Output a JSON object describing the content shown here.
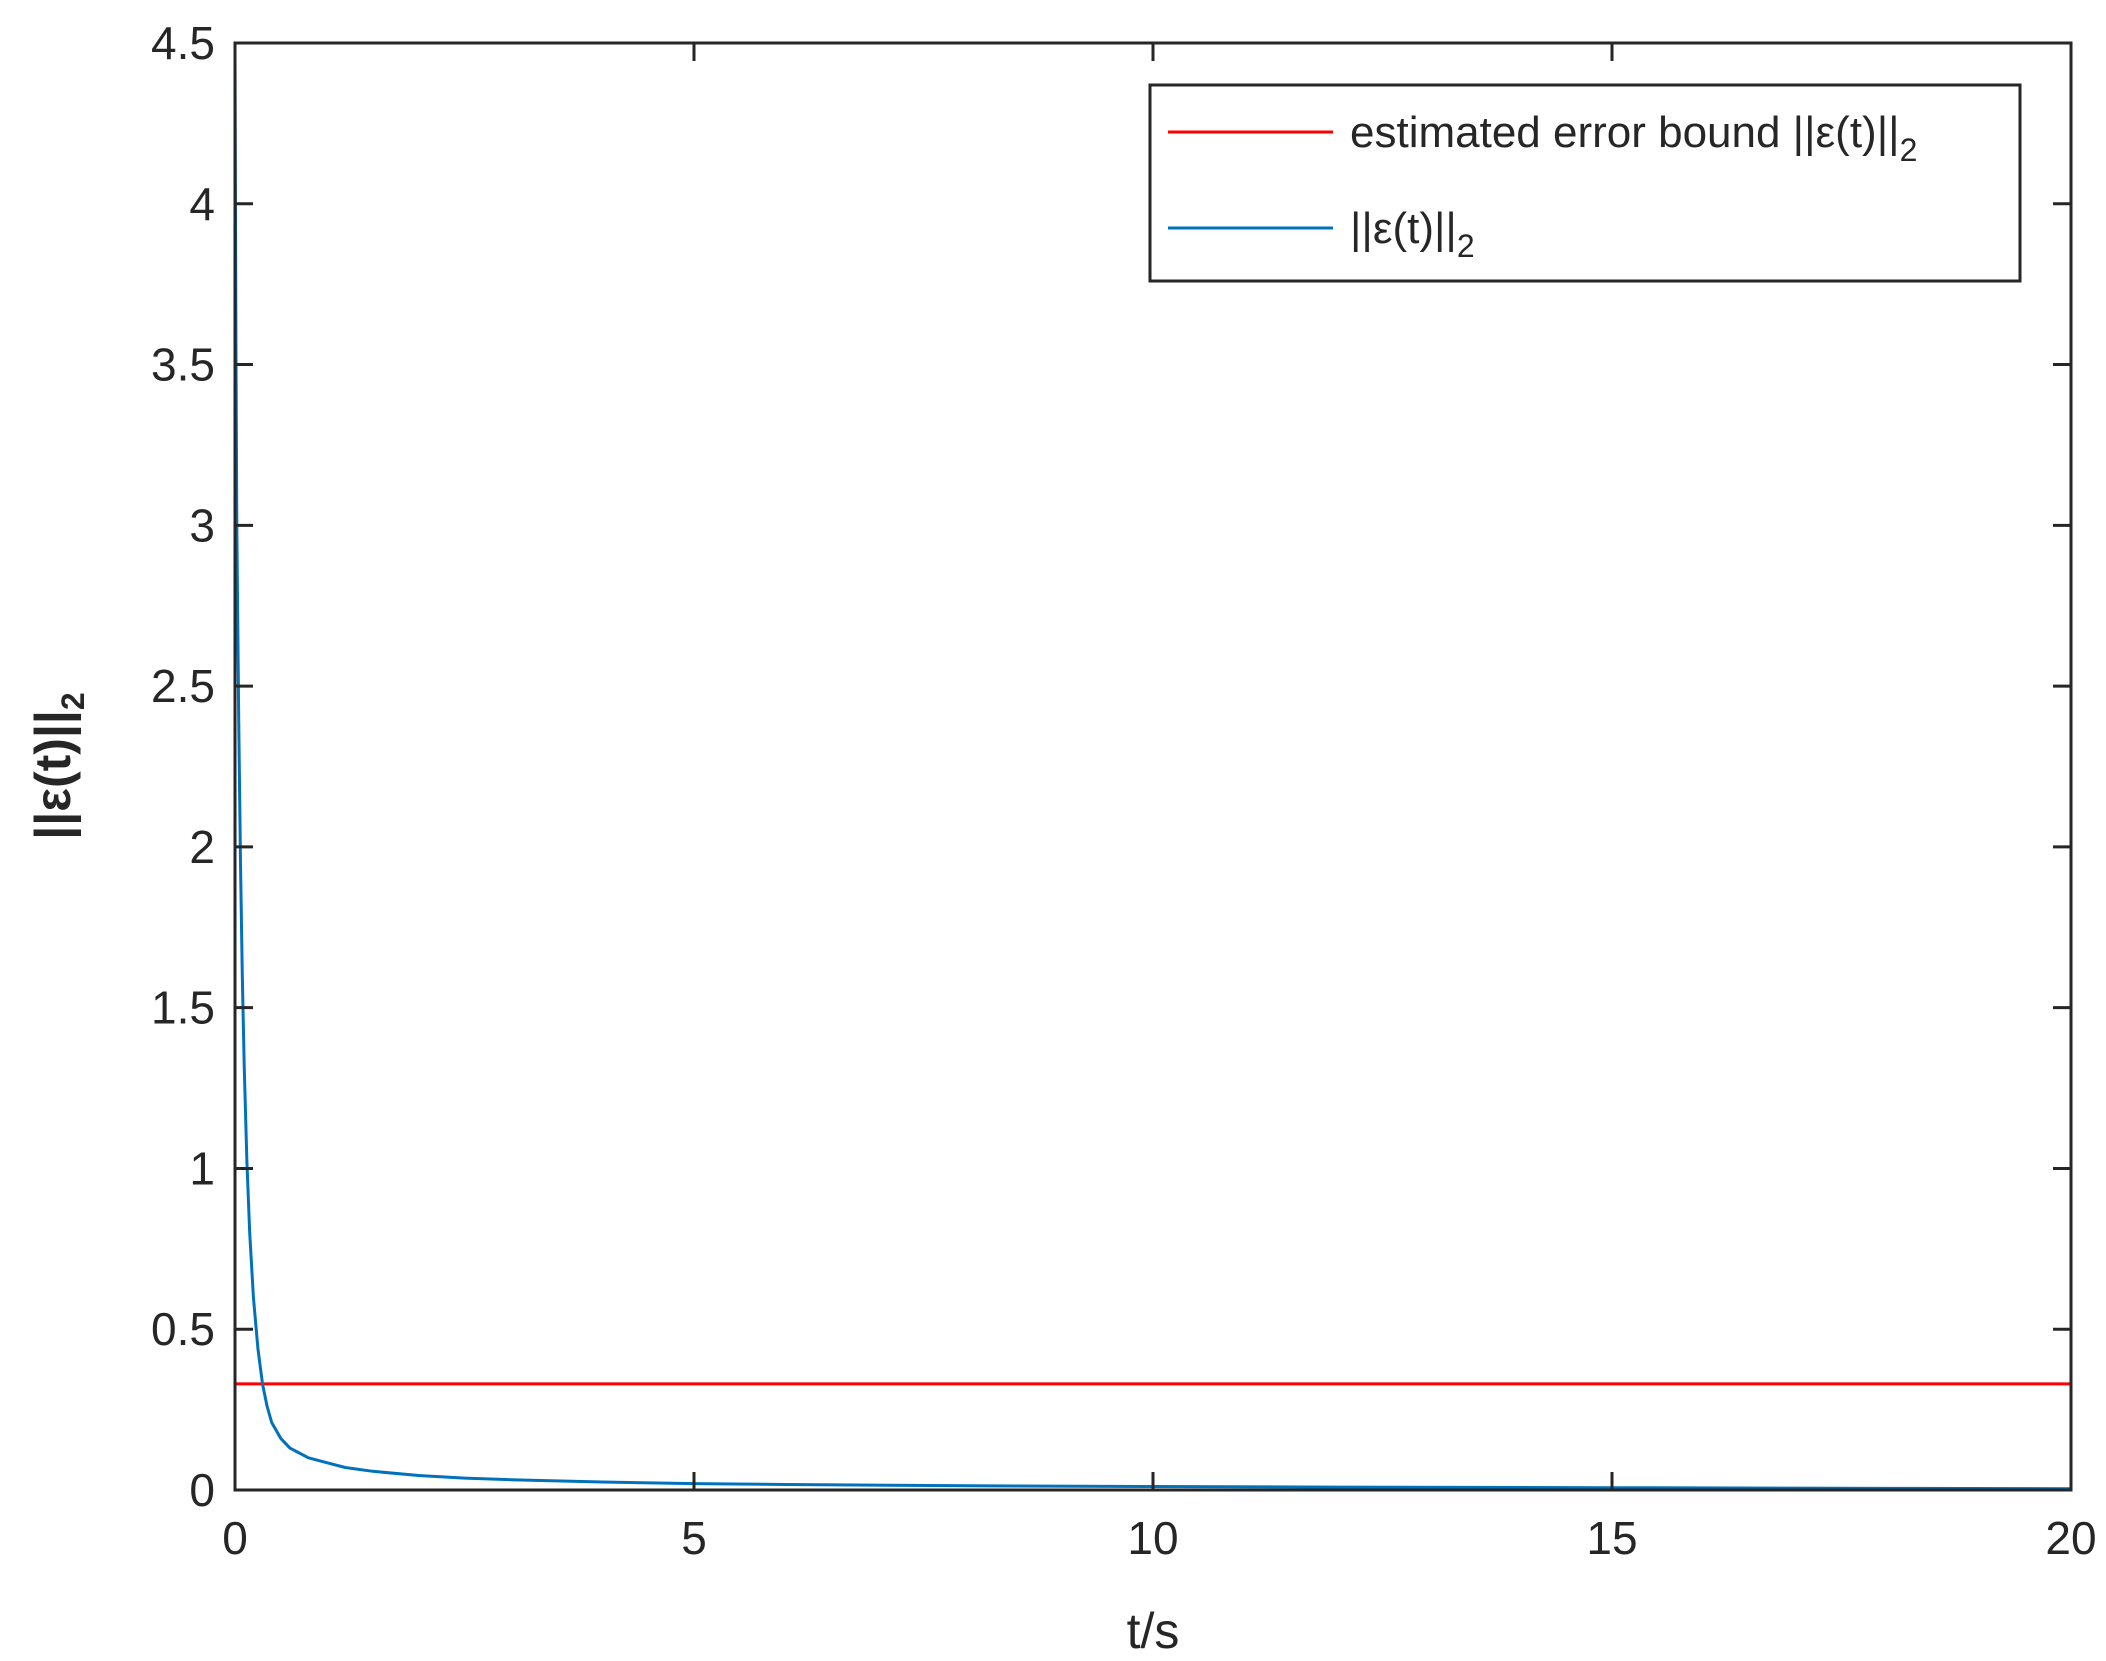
{
  "chart_data": {
    "type": "line",
    "xlabel": "t/s",
    "ylabel": "||ε(t)||",
    "ylabel_subscript": "2",
    "xlim": [
      0,
      20
    ],
    "ylim": [
      0,
      4.5
    ],
    "xticks": [
      0,
      5,
      10,
      15,
      20
    ],
    "xtick_labels": [
      "0",
      "5",
      "10",
      "15",
      "20"
    ],
    "yticks": [
      0,
      0.5,
      1,
      1.5,
      2,
      2.5,
      3,
      3.5,
      4,
      4.5
    ],
    "ytick_labels": [
      "0",
      "0.5",
      "1",
      "1.5",
      "2",
      "2.5",
      "3",
      "3.5",
      "4",
      "4.5"
    ],
    "grid": false,
    "legend_position": "top-right",
    "series": [
      {
        "name": "estimated error bound ||ε(t)||",
        "name_subscript": "2",
        "color": "#ff0000",
        "x": [
          0,
          20
        ],
        "y": [
          0.33,
          0.33
        ]
      },
      {
        "name": "||ε(t)||",
        "name_subscript": "2",
        "color": "#0072bd",
        "x": [
          0,
          0.01,
          0.02,
          0.04,
          0.06,
          0.08,
          0.1,
          0.13,
          0.16,
          0.2,
          0.25,
          0.3,
          0.35,
          0.4,
          0.5,
          0.6,
          0.7,
          0.8,
          1.0,
          1.2,
          1.5,
          2.0,
          2.5,
          3.0,
          4.0,
          5.0,
          6.0,
          8.0,
          10.0,
          12.0,
          15.0,
          18.0,
          20.0
        ],
        "y": [
          4.45,
          3.6,
          3.0,
          2.4,
          1.95,
          1.6,
          1.32,
          1.02,
          0.8,
          0.6,
          0.44,
          0.33,
          0.26,
          0.21,
          0.16,
          0.13,
          0.115,
          0.1,
          0.085,
          0.07,
          0.058,
          0.045,
          0.037,
          0.032,
          0.025,
          0.02,
          0.017,
          0.013,
          0.011,
          0.009,
          0.007,
          0.005,
          0.004
        ]
      }
    ]
  }
}
